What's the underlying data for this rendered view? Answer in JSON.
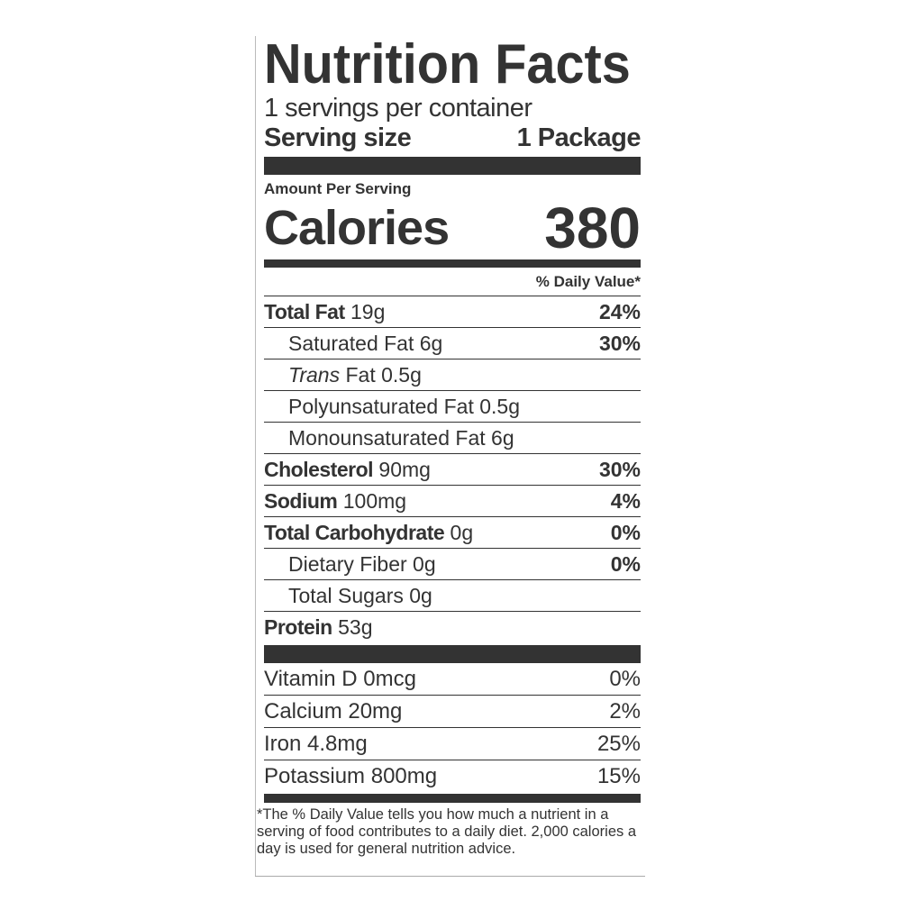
{
  "label": {
    "title": "Nutrition Facts",
    "servings_per_container": "1 servings per container",
    "serving_size_label": "Serving size",
    "serving_size_value": "1 Package",
    "amount_per_serving": "Amount Per Serving",
    "calories_label": "Calories",
    "calories_value": "380",
    "daily_value_header": "% Daily Value*",
    "nutrients": [
      {
        "name": "Total Fat",
        "amount": "19g",
        "dv": "24%",
        "bold": true,
        "indent": false
      },
      {
        "name": "Saturated Fat",
        "amount": "6g",
        "dv": "30%",
        "bold": false,
        "indent": true
      },
      {
        "name": "Trans",
        "name_suffix": "Fat",
        "amount": "0.5g",
        "dv": "",
        "bold": false,
        "indent": true
      },
      {
        "name": "Polyunsaturated Fat",
        "amount": "0.5g",
        "dv": "",
        "bold": false,
        "indent": true
      },
      {
        "name": "Monounsaturated Fat",
        "amount": "6g",
        "dv": "",
        "bold": false,
        "indent": true
      },
      {
        "name": "Cholesterol",
        "amount": "90mg",
        "dv": "30%",
        "bold": true,
        "indent": false
      },
      {
        "name": "Sodium",
        "amount": "100mg",
        "dv": "4%",
        "bold": true,
        "indent": false
      },
      {
        "name": "Total Carbohydrate",
        "amount": "0g",
        "dv": "0%",
        "bold": true,
        "indent": false
      },
      {
        "name": "Dietary Fiber",
        "amount": "0g",
        "dv": "0%",
        "bold": false,
        "indent": true
      },
      {
        "name": "Total Sugars",
        "amount": "0g",
        "dv": "",
        "bold": false,
        "indent": true
      },
      {
        "name": "Protein",
        "amount": "53g",
        "dv": "",
        "bold": true,
        "indent": false
      }
    ],
    "vitamins": [
      {
        "name": "Vitamin D",
        "amount": "0mcg",
        "dv": "0%"
      },
      {
        "name": "Calcium",
        "amount": "20mg",
        "dv": "2%"
      },
      {
        "name": "Iron",
        "amount": "4.8mg",
        "dv": "25%"
      },
      {
        "name": "Potassium",
        "amount": "800mg",
        "dv": "15%"
      }
    ],
    "footnote": "*The % Daily Value tells you how much a nutrient in a serving of food contributes to a daily diet. 2,000 calories a day is used for general nutrition advice."
  }
}
